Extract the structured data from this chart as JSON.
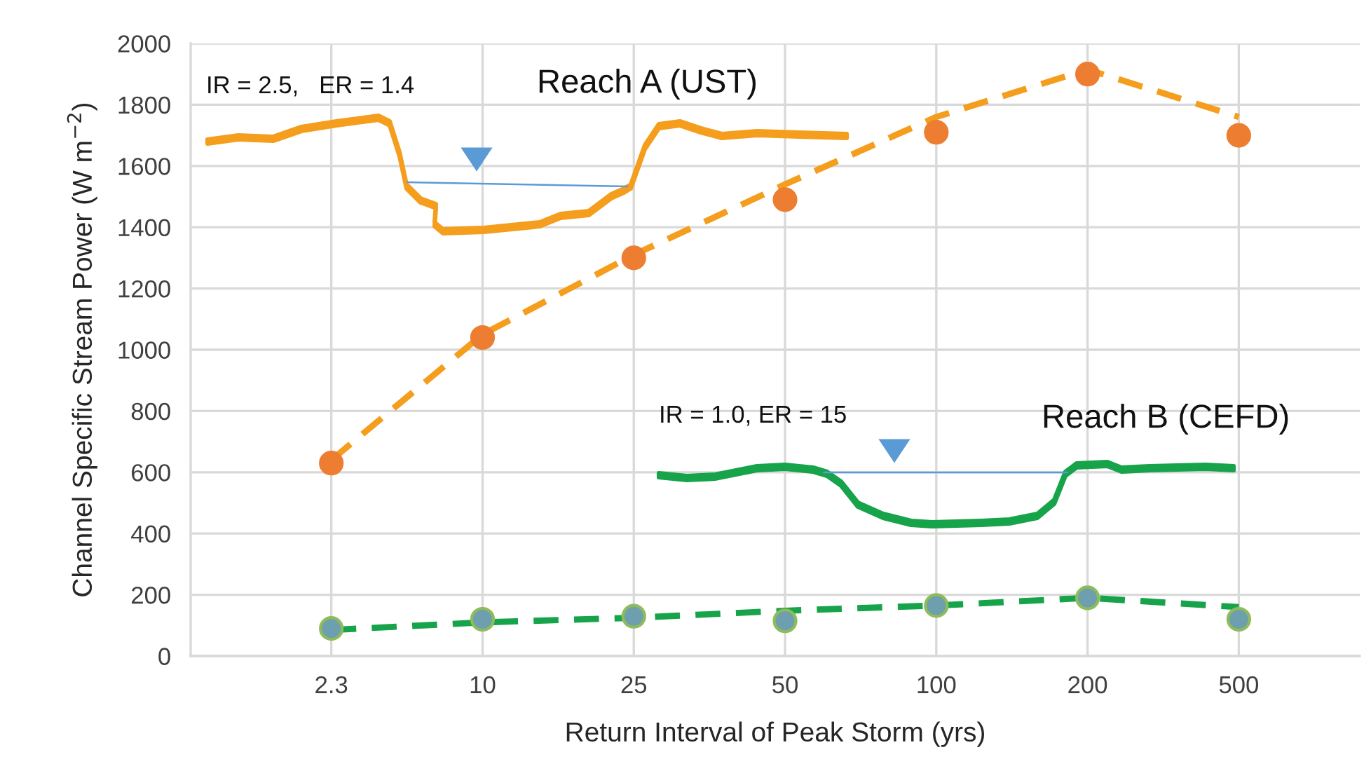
{
  "chart_data": {
    "type": "scatter",
    "xlabel": "Return Interval of Peak Storm (yrs)",
    "ylabel": "Channel Specific Stream Power (W m$^{−2}$)",
    "categories": [
      "2.3",
      "10",
      "25",
      "50",
      "100",
      "200",
      "500"
    ],
    "ylim": [
      0,
      2000
    ],
    "yticks": [
      0,
      200,
      400,
      600,
      800,
      1000,
      1200,
      1400,
      1600,
      1800,
      2000
    ],
    "grid": true,
    "annotations": [
      "IR = 2.5,   ER = 1.4",
      "Reach A (UST)",
      "IR = 1.0, ER = 15",
      "Reach B (CEFD)"
    ],
    "series": [
      {
        "type": "line",
        "color": "#f59d1c",
        "line_style": "dashed",
        "marker": "none",
        "values": [
          640,
          1050,
          1310,
          1540,
          1760,
          1915,
          1760
        ]
      },
      {
        "type": "line",
        "color": "#16a34a",
        "line_style": "dashed",
        "marker": "none",
        "values": [
          85,
          110,
          125,
          148,
          165,
          190,
          160
        ]
      },
      {
        "color": "#ed7d31",
        "marker": "circle",
        "values": [
          630,
          1040,
          1300,
          1490,
          1710,
          1900,
          1700
        ]
      },
      {
        "color": "#6d9fae",
        "marker": "circle",
        "values": [
          90,
          120,
          130,
          115,
          165,
          190,
          120
        ]
      }
    ]
  }
}
